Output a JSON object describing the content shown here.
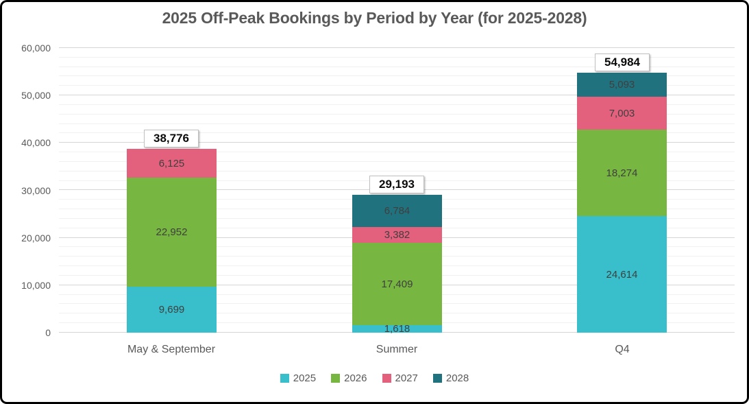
{
  "chart_data": {
    "type": "bar",
    "stacked": true,
    "title": "2025 Off-Peak Bookings by Period by Year  (for 2025-2028)",
    "categories": [
      "May & September",
      "Summer",
      "Q4"
    ],
    "series": [
      {
        "name": "2025",
        "color": "#38BFCB",
        "values": [
          9699,
          1618,
          24614
        ]
      },
      {
        "name": "2026",
        "color": "#77B640",
        "values": [
          22952,
          17409,
          18274
        ]
      },
      {
        "name": "2027",
        "color": "#E4617E",
        "values": [
          6125,
          3382,
          7003
        ]
      },
      {
        "name": "2028",
        "color": "#21727F",
        "values": [
          0,
          6784,
          5093
        ]
      }
    ],
    "totals": [
      38776,
      29193,
      54984
    ],
    "total_labels": [
      "38,776",
      "29,193",
      "54,984"
    ],
    "segment_labels_shown": true,
    "ylim": [
      0,
      60000
    ],
    "y_major_step": 10000,
    "y_minor_step": 2000,
    "y_tick_labels": [
      "0",
      "10,000",
      "20,000",
      "30,000",
      "40,000",
      "50,000",
      "60,000"
    ],
    "xlabel": "",
    "ylabel": "",
    "grid": true,
    "legend_position": "bottom",
    "theme": {
      "axis_text_color": "#595959",
      "segment_label_color": "#3F3F3F",
      "total_text_color": "#0a0a0a",
      "major_gridline_color": "#D5D5D5",
      "minor_gridline_color": "#F1F1F1",
      "total_box_border_color": "#BFBFBF",
      "frame_border_color": "#000000",
      "background_color": "#FFFFFF"
    }
  }
}
